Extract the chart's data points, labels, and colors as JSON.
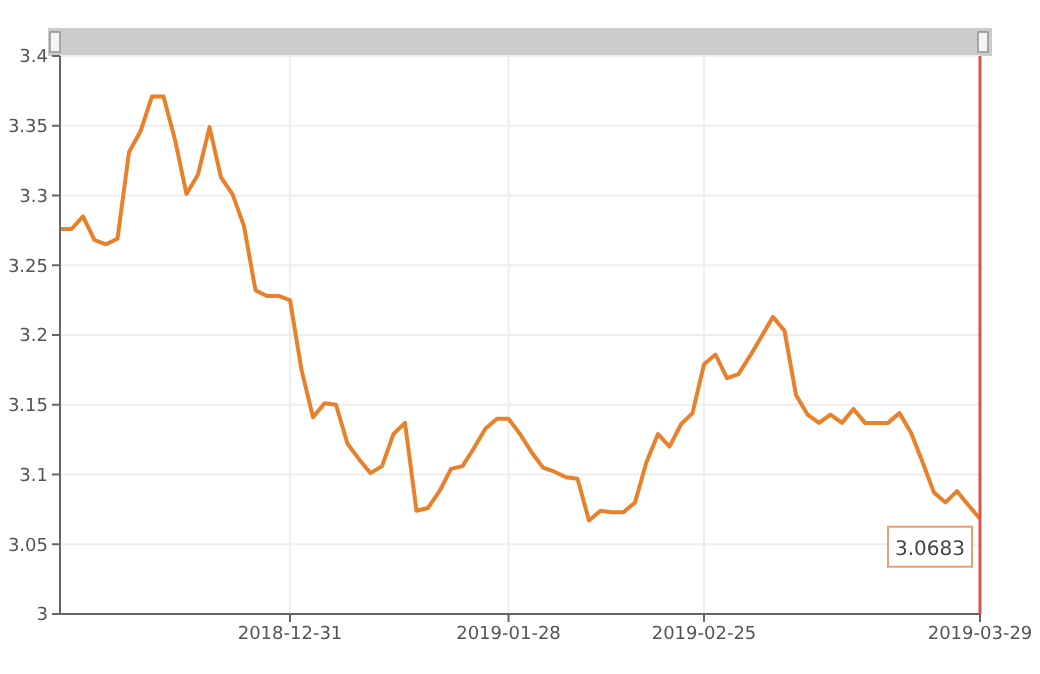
{
  "chart_data": {
    "type": "line",
    "categories": [
      null,
      null,
      null,
      null,
      null,
      null,
      null,
      null,
      null,
      null,
      null,
      null,
      null,
      null,
      null,
      null,
      null,
      null,
      null,
      null,
      "2018-12-31",
      null,
      null,
      null,
      null,
      null,
      null,
      null,
      null,
      null,
      null,
      null,
      null,
      null,
      null,
      null,
      null,
      null,
      null,
      "2019-01-28",
      null,
      null,
      null,
      null,
      null,
      null,
      null,
      null,
      null,
      null,
      null,
      null,
      null,
      null,
      null,
      null,
      "2019-02-25",
      null,
      null,
      null,
      null,
      null,
      null,
      null,
      null,
      null,
      null,
      null,
      null,
      null,
      null,
      null,
      null,
      null,
      null,
      null,
      null,
      null,
      null,
      null,
      "2019-03-29"
    ],
    "series": [
      {
        "color": "#e8802c",
        "values": [
          3.276,
          3.276,
          3.285,
          3.268,
          3.265,
          3.269,
          3.331,
          3.346,
          3.371,
          3.371,
          3.34,
          3.301,
          3.315,
          3.349,
          3.313,
          3.301,
          3.278,
          3.232,
          3.228,
          3.228,
          3.225,
          3.175,
          3.141,
          3.151,
          3.15,
          3.122,
          3.111,
          3.101,
          3.106,
          3.129,
          3.137,
          3.074,
          3.076,
          3.088,
          3.104,
          3.106,
          3.119,
          3.133,
          3.14,
          3.14,
          3.129,
          3.116,
          3.105,
          3.102,
          3.098,
          3.097,
          3.067,
          3.074,
          3.073,
          3.073,
          3.08,
          3.109,
          3.129,
          3.12,
          3.136,
          3.144,
          3.179,
          3.186,
          3.169,
          3.172,
          3.185,
          3.199,
          3.213,
          3.203,
          3.157,
          3.143,
          3.137,
          3.143,
          3.137,
          3.147,
          3.137,
          3.137,
          3.137,
          3.144,
          3.13,
          3.109,
          3.087,
          3.08,
          3.088,
          3.078,
          3.0683
        ]
      }
    ],
    "ylim": [
      3,
      3.4
    ],
    "yticks": [
      3,
      3.05,
      3.1,
      3.15,
      3.2,
      3.25,
      3.3,
      3.35,
      3.4
    ],
    "grid": true,
    "marker": "none",
    "line_style": "solid",
    "ref_lines": [
      {
        "axis": "x",
        "value": "2019-03-29",
        "color": "#d9534f"
      }
    ],
    "annotations": [
      {
        "text": "3.0683",
        "x": "2019-03-29",
        "y": 3.0683
      }
    ]
  }
}
